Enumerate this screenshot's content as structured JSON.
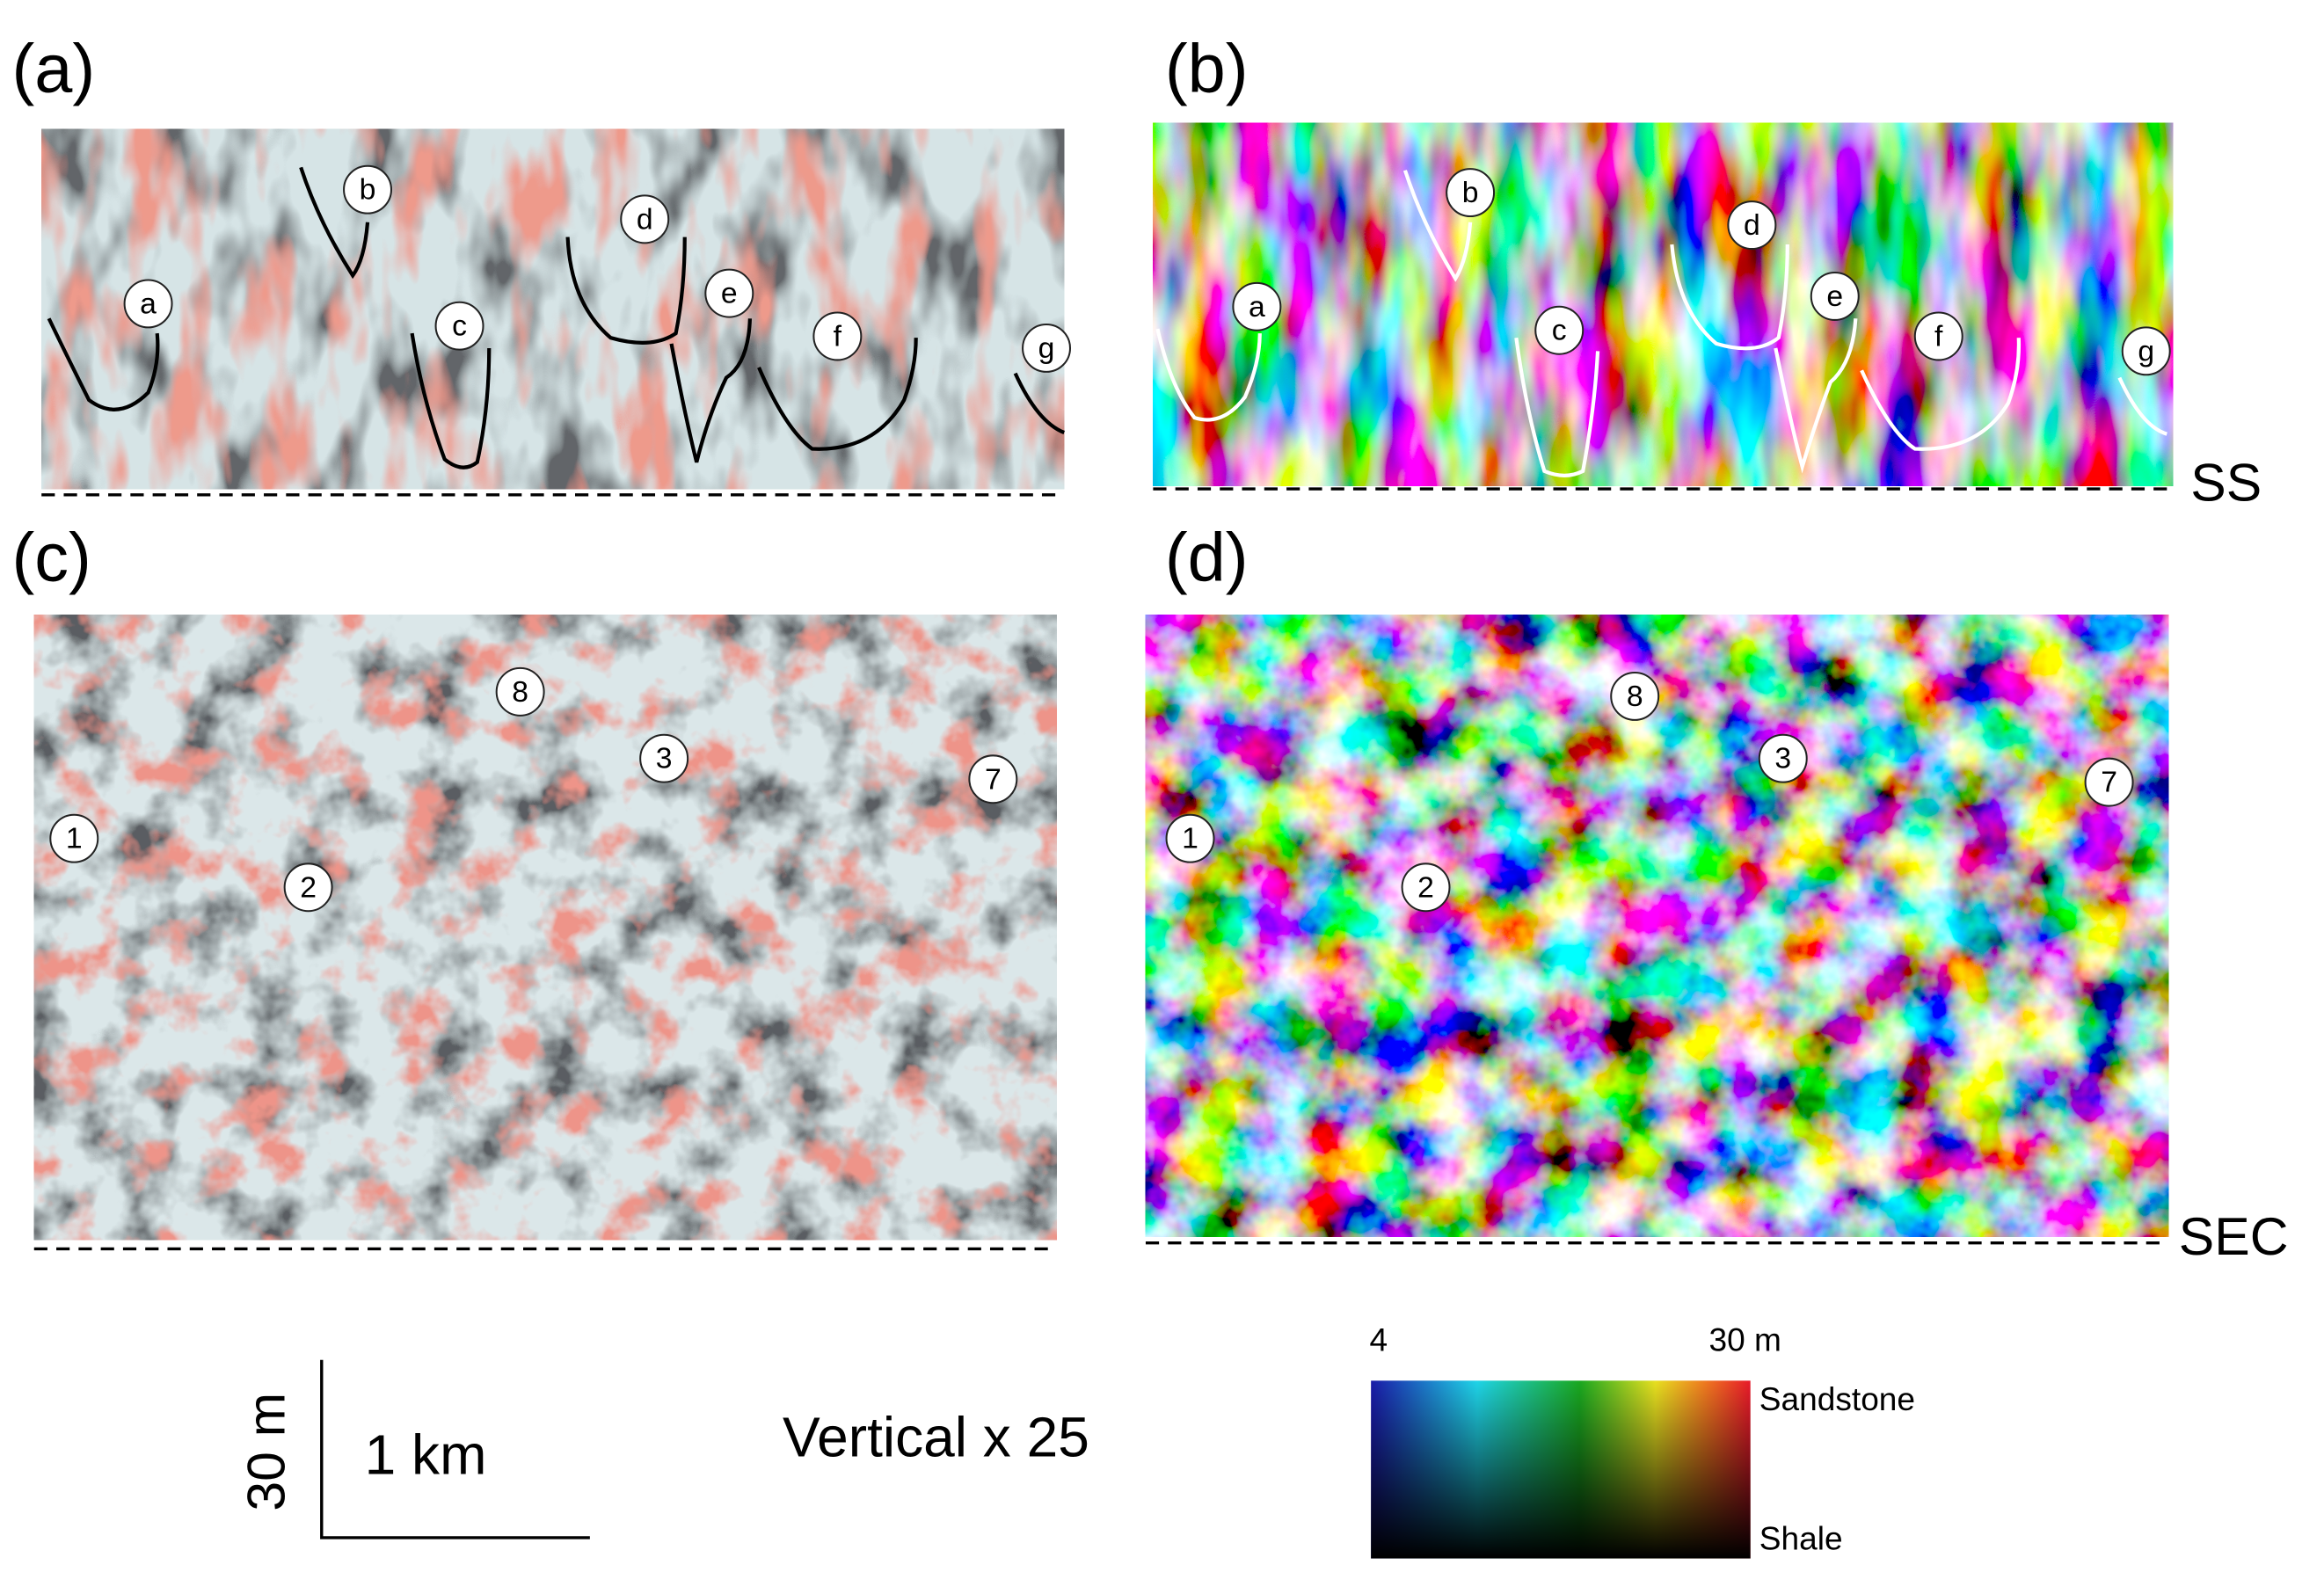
{
  "panels": [
    {
      "label": "(a)",
      "markers": [
        "a",
        "b",
        "c",
        "d",
        "e",
        "f",
        "g"
      ]
    },
    {
      "label": "(b)",
      "markers": [
        "a",
        "b",
        "c",
        "d",
        "e",
        "f",
        "g"
      ]
    },
    {
      "label": "(c)",
      "markers": [
        "8",
        "3",
        "7",
        "1",
        "2"
      ]
    },
    {
      "label": "(d)",
      "markers": [
        "8",
        "3",
        "7",
        "1",
        "2"
      ]
    }
  ],
  "side_labels": [
    "SS",
    "SEC"
  ],
  "scale_bar": {
    "vertical": "30 m",
    "horizontal": "1 km"
  },
  "exaggeration": "Vertical x 25",
  "colorbar": {
    "min": "4",
    "max": "30 m",
    "top": "Sandstone",
    "bottom": "Shale"
  }
}
